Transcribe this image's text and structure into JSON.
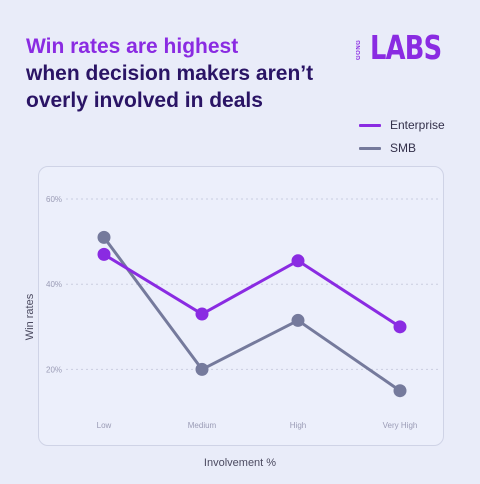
{
  "header": {
    "title_line1": "Win rates are highest",
    "title_line2": "when decision makers aren’t",
    "title_line3": "overly involved in deals"
  },
  "logo": {
    "brand": "GONG",
    "product": "LABS"
  },
  "colors": {
    "accent": "#8a2be2",
    "title": "#2a1465",
    "smb": "#757a9c",
    "grid": "#c9cde0"
  },
  "chart_data": {
    "type": "line",
    "categories": [
      "Low",
      "Medium",
      "High",
      "Very High"
    ],
    "series": [
      {
        "name": "Enterprise",
        "values": [
          47,
          33,
          45.5,
          30
        ],
        "color": "#8a2be2"
      },
      {
        "name": "SMB",
        "values": [
          51,
          20,
          31.5,
          15
        ],
        "color": "#757a9c"
      }
    ],
    "yticks": [
      "20%",
      "40%",
      "60%"
    ],
    "ytick_values": [
      20,
      40,
      60
    ],
    "ylim": [
      10,
      64
    ],
    "xlabel": "Involvement %",
    "ylabel": "Win rates",
    "legend": "top-right",
    "grid": true
  }
}
